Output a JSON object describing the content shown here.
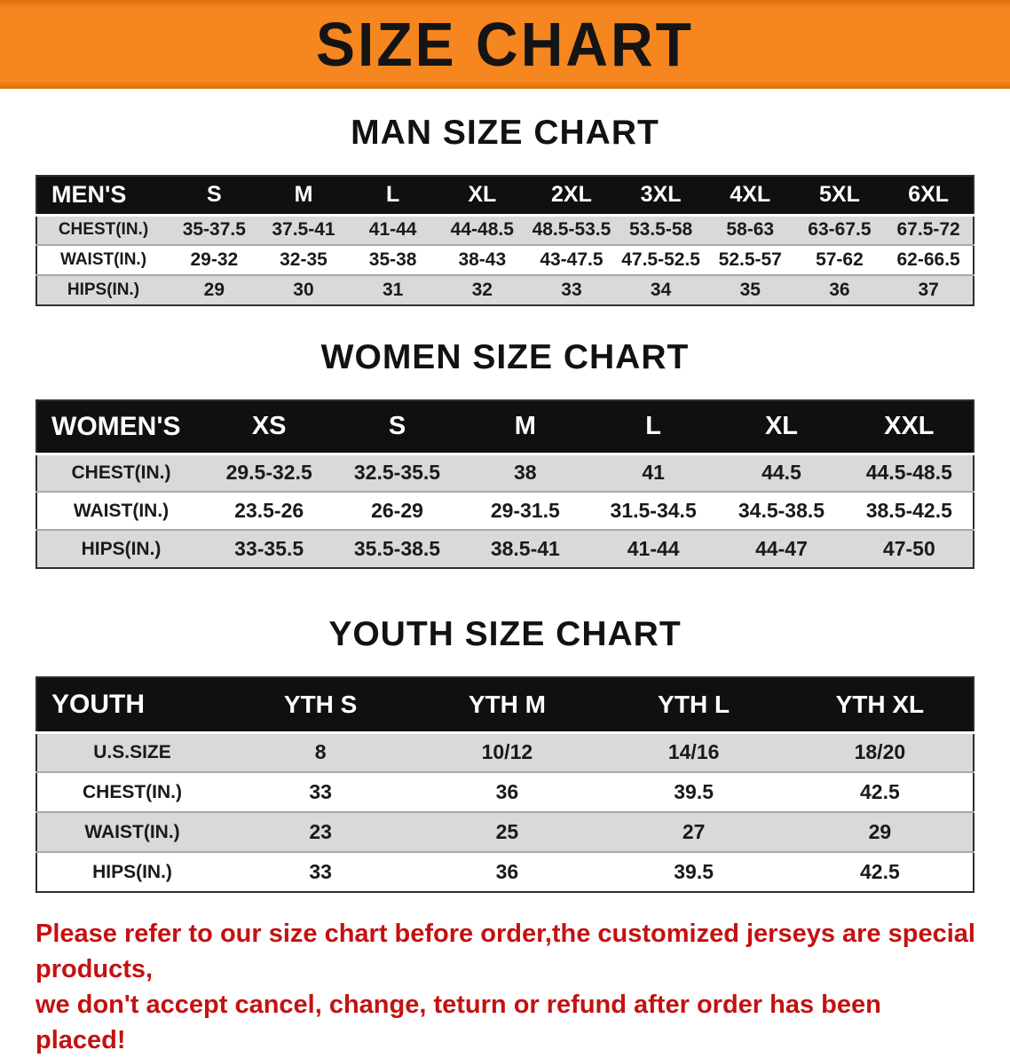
{
  "banner": {
    "title": "SIZE CHART"
  },
  "sections": [
    {
      "id": "men",
      "heading": "MAN SIZE CHART",
      "header": [
        "MEN'S",
        "S",
        "M",
        "L",
        "XL",
        "2XL",
        "3XL",
        "4XL",
        "5XL",
        "6XL"
      ],
      "rows": [
        [
          "CHEST(IN.)",
          "35-37.5",
          "37.5-41",
          "41-44",
          "44-48.5",
          "48.5-53.5",
          "53.5-58",
          "58-63",
          "63-67.5",
          "67.5-72"
        ],
        [
          "WAIST(IN.)",
          "29-32",
          "32-35",
          "35-38",
          "38-43",
          "43-47.5",
          "47.5-52.5",
          "52.5-57",
          "57-62",
          "62-66.5"
        ],
        [
          "HIPS(IN.)",
          "29",
          "30",
          "31",
          "32",
          "33",
          "34",
          "35",
          "36",
          "37"
        ]
      ]
    },
    {
      "id": "women",
      "heading": "WOMEN SIZE CHART",
      "header": [
        "WOMEN'S",
        "XS",
        "S",
        "M",
        "L",
        "XL",
        "XXL"
      ],
      "rows": [
        [
          "CHEST(IN.)",
          "29.5-32.5",
          "32.5-35.5",
          "38",
          "41",
          "44.5",
          "44.5-48.5"
        ],
        [
          "WAIST(IN.)",
          "23.5-26",
          "26-29",
          "29-31.5",
          "31.5-34.5",
          "34.5-38.5",
          "38.5-42.5"
        ],
        [
          "HIPS(IN.)",
          "33-35.5",
          "35.5-38.5",
          "38.5-41",
          "41-44",
          "44-47",
          "47-50"
        ]
      ]
    },
    {
      "id": "youth",
      "heading": "YOUTH SIZE CHART",
      "header": [
        "YOUTH",
        "YTH S",
        "YTH M",
        "YTH L",
        "YTH XL"
      ],
      "rows": [
        [
          "U.S.SIZE",
          "8",
          "10/12",
          "14/16",
          "18/20"
        ],
        [
          "CHEST(IN.)",
          "33",
          "36",
          "39.5",
          "42.5"
        ],
        [
          "WAIST(IN.)",
          "23",
          "25",
          "27",
          "29"
        ],
        [
          "HIPS(IN.)",
          "33",
          "36",
          "39.5",
          "42.5"
        ]
      ]
    }
  ],
  "disclaimer": {
    "line1": "Please refer to our size chart before order,the customized jerseys are special products,",
    "line2": "we don't accept cancel, change, teturn or refund after order has been placed!"
  },
  "colors": {
    "banner_orange": "#f6861f",
    "header_black": "#101010",
    "row_alt_gray": "#d9d9d9",
    "disclaimer_red": "#c41111"
  }
}
